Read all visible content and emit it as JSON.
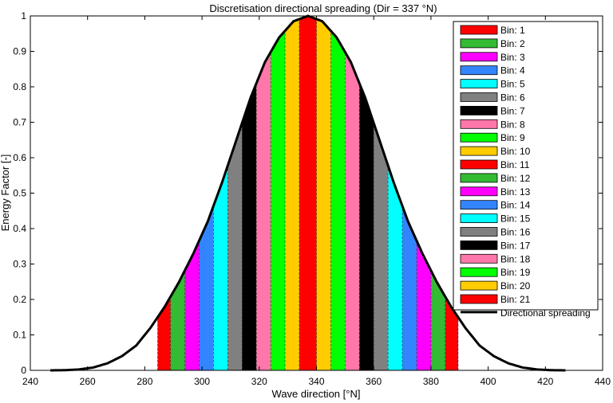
{
  "chart_data": {
    "type": "bar",
    "title": "Discretisation directional spreading (Dir = 337 °N)",
    "xlabel": "Wave direction [°N]",
    "ylabel": "Energy Factor [-]",
    "xlim": [
      240,
      440
    ],
    "ylim": [
      0,
      1
    ],
    "xticks": [
      240,
      260,
      280,
      300,
      320,
      340,
      360,
      380,
      400,
      420,
      440
    ],
    "yticks": [
      0,
      0.1,
      0.2,
      0.3,
      0.4,
      0.5,
      0.6,
      0.7,
      0.8,
      0.9,
      1
    ],
    "grid": false,
    "legend_position": "top-right",
    "bin_width_deg": 4.5,
    "bin_shading_range": [
      284.5,
      389.5
    ],
    "bins": [
      {
        "name": "Bin: 1",
        "color": "#ff0000",
        "strips": [
          [
            284.5,
            289
          ],
          [
            385,
            389.5
          ]
        ]
      },
      {
        "name": "Bin: 2",
        "color": "#33bb33",
        "strips": [
          [
            289,
            294
          ],
          [
            380,
            385
          ]
        ]
      },
      {
        "name": "Bin: 3",
        "color": "#ff00ff",
        "strips": [
          [
            294,
            299
          ],
          [
            375,
            380
          ]
        ]
      },
      {
        "name": "Bin: 4",
        "color": "#3385ff",
        "strips": [
          [
            299,
            304
          ],
          [
            370,
            375
          ]
        ]
      },
      {
        "name": "Bin: 5",
        "color": "#00ffff",
        "strips": [
          [
            304,
            309
          ],
          [
            365,
            370
          ]
        ]
      },
      {
        "name": "Bin: 6",
        "color": "#808080",
        "strips": [
          [
            309,
            314
          ],
          [
            360,
            365
          ]
        ]
      },
      {
        "name": "Bin: 7",
        "color": "#000000",
        "strips": [
          [
            314,
            319
          ],
          [
            355,
            360
          ]
        ]
      },
      {
        "name": "Bin: 8",
        "color": "#ff77aa",
        "strips": [
          [
            319,
            324
          ],
          [
            350,
            355
          ]
        ]
      },
      {
        "name": "Bin: 9",
        "color": "#00ff00",
        "strips": [
          [
            324,
            329
          ],
          [
            345,
            350
          ]
        ]
      },
      {
        "name": "Bin: 10",
        "color": "#ffcc00",
        "strips": [
          [
            329,
            334
          ],
          [
            340,
            345
          ]
        ]
      },
      {
        "name": "Bin: 11",
        "color": "#ff0000",
        "strips": [
          [
            334,
            340
          ]
        ]
      },
      {
        "name": "Bin: 12",
        "color": "#33bb33",
        "strips": []
      },
      {
        "name": "Bin: 13",
        "color": "#ff00ff",
        "strips": []
      },
      {
        "name": "Bin: 14",
        "color": "#3385ff",
        "strips": []
      },
      {
        "name": "Bin: 15",
        "color": "#00ffff",
        "strips": []
      },
      {
        "name": "Bin: 16",
        "color": "#808080",
        "strips": []
      },
      {
        "name": "Bin: 17",
        "color": "#000000",
        "strips": []
      },
      {
        "name": "Bin: 18",
        "color": "#ff77aa",
        "strips": []
      },
      {
        "name": "Bin: 19",
        "color": "#00ff00",
        "strips": []
      },
      {
        "name": "Bin: 20",
        "color": "#ffcc00",
        "strips": []
      },
      {
        "name": "Bin: 21",
        "color": "#ff0000",
        "strips": []
      }
    ],
    "spreading_curve": {
      "name": "Directional spreading",
      "color": "#000000",
      "x": [
        247,
        252,
        257,
        262,
        267,
        272,
        277,
        282,
        287,
        292,
        297,
        302,
        307,
        312,
        317,
        322,
        327,
        332,
        337,
        342,
        347,
        352,
        357,
        362,
        367,
        372,
        377,
        382,
        387,
        392,
        397,
        402,
        407,
        412,
        417,
        422,
        427
      ],
      "y": [
        0,
        0.0005,
        0.0025,
        0.008,
        0.02,
        0.04,
        0.07,
        0.12,
        0.18,
        0.25,
        0.33,
        0.42,
        0.53,
        0.65,
        0.77,
        0.87,
        0.94,
        0.985,
        1.0,
        0.985,
        0.94,
        0.87,
        0.77,
        0.65,
        0.53,
        0.42,
        0.33,
        0.25,
        0.18,
        0.12,
        0.07,
        0.04,
        0.02,
        0.008,
        0.0025,
        0.0005,
        0
      ]
    }
  }
}
